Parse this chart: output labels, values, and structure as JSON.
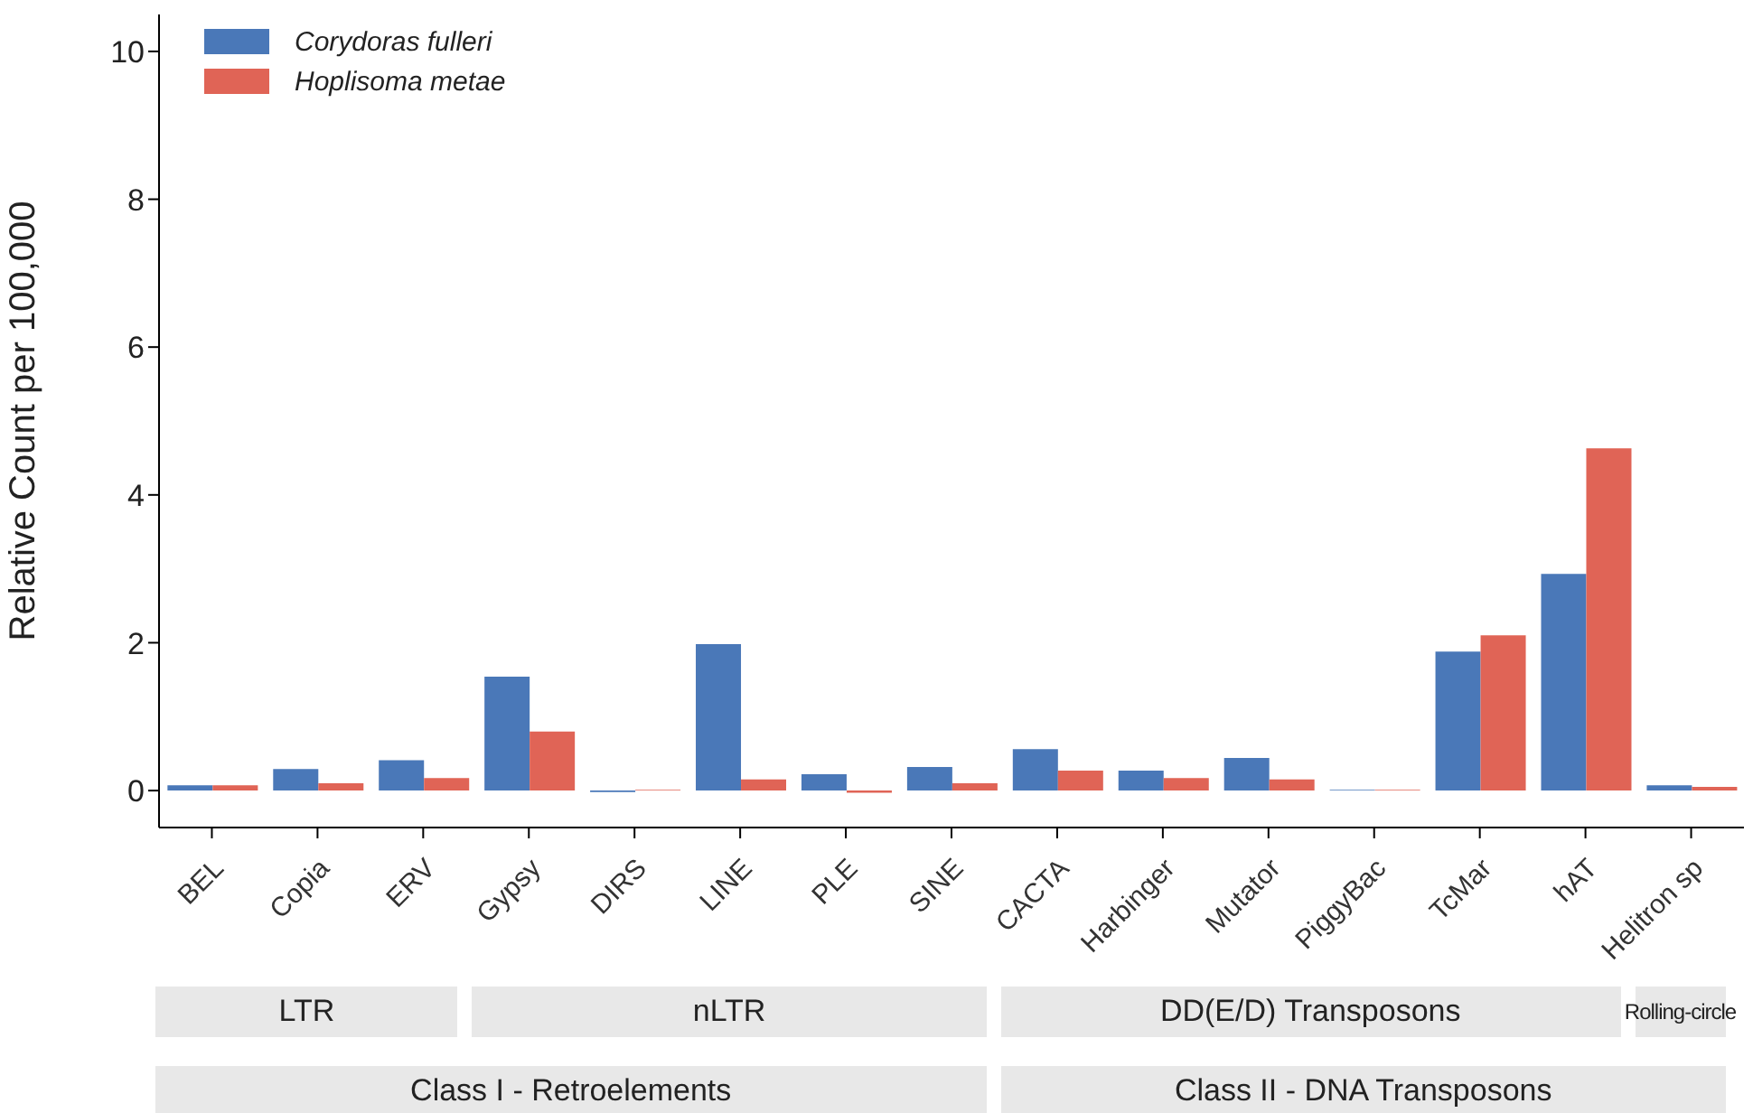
{
  "chart_data": {
    "type": "bar",
    "ylabel": "Relative Count per 100,000",
    "categories": [
      "BEL",
      "Copia",
      "ERV",
      "Gypsy",
      "DIRS",
      "LINE",
      "PLE",
      "SINE",
      "CACTA",
      "Harbinger",
      "Mutator",
      "PiggyBac",
      "TcMar",
      "hAT",
      "Helitron sp"
    ],
    "series": [
      {
        "name": "Corydoras fulleri",
        "color": "#4a78b8",
        "values": [
          0.07,
          0.29,
          0.41,
          1.54,
          -0.02,
          1.98,
          0.22,
          0.32,
          0.56,
          0.27,
          0.44,
          0.01,
          1.88,
          2.93,
          0.07
        ]
      },
      {
        "name": "Hoplisoma metae",
        "color": "#e06456",
        "values": [
          0.07,
          0.1,
          0.17,
          0.8,
          0.01,
          0.15,
          -0.03,
          0.1,
          0.27,
          0.17,
          0.15,
          0.01,
          2.1,
          4.63,
          0.05
        ]
      }
    ],
    "ylim": [
      -0.5,
      10.5
    ],
    "yticks": [
      0,
      2,
      4,
      6,
      8,
      10
    ],
    "grid": false,
    "legend": "top left",
    "annotations": [
      "LTR",
      "nLTR",
      "DD(E/D) Transposons",
      "Rolling-circle",
      "Class I - Retroelements",
      "Class II - DNA Transposons"
    ]
  }
}
